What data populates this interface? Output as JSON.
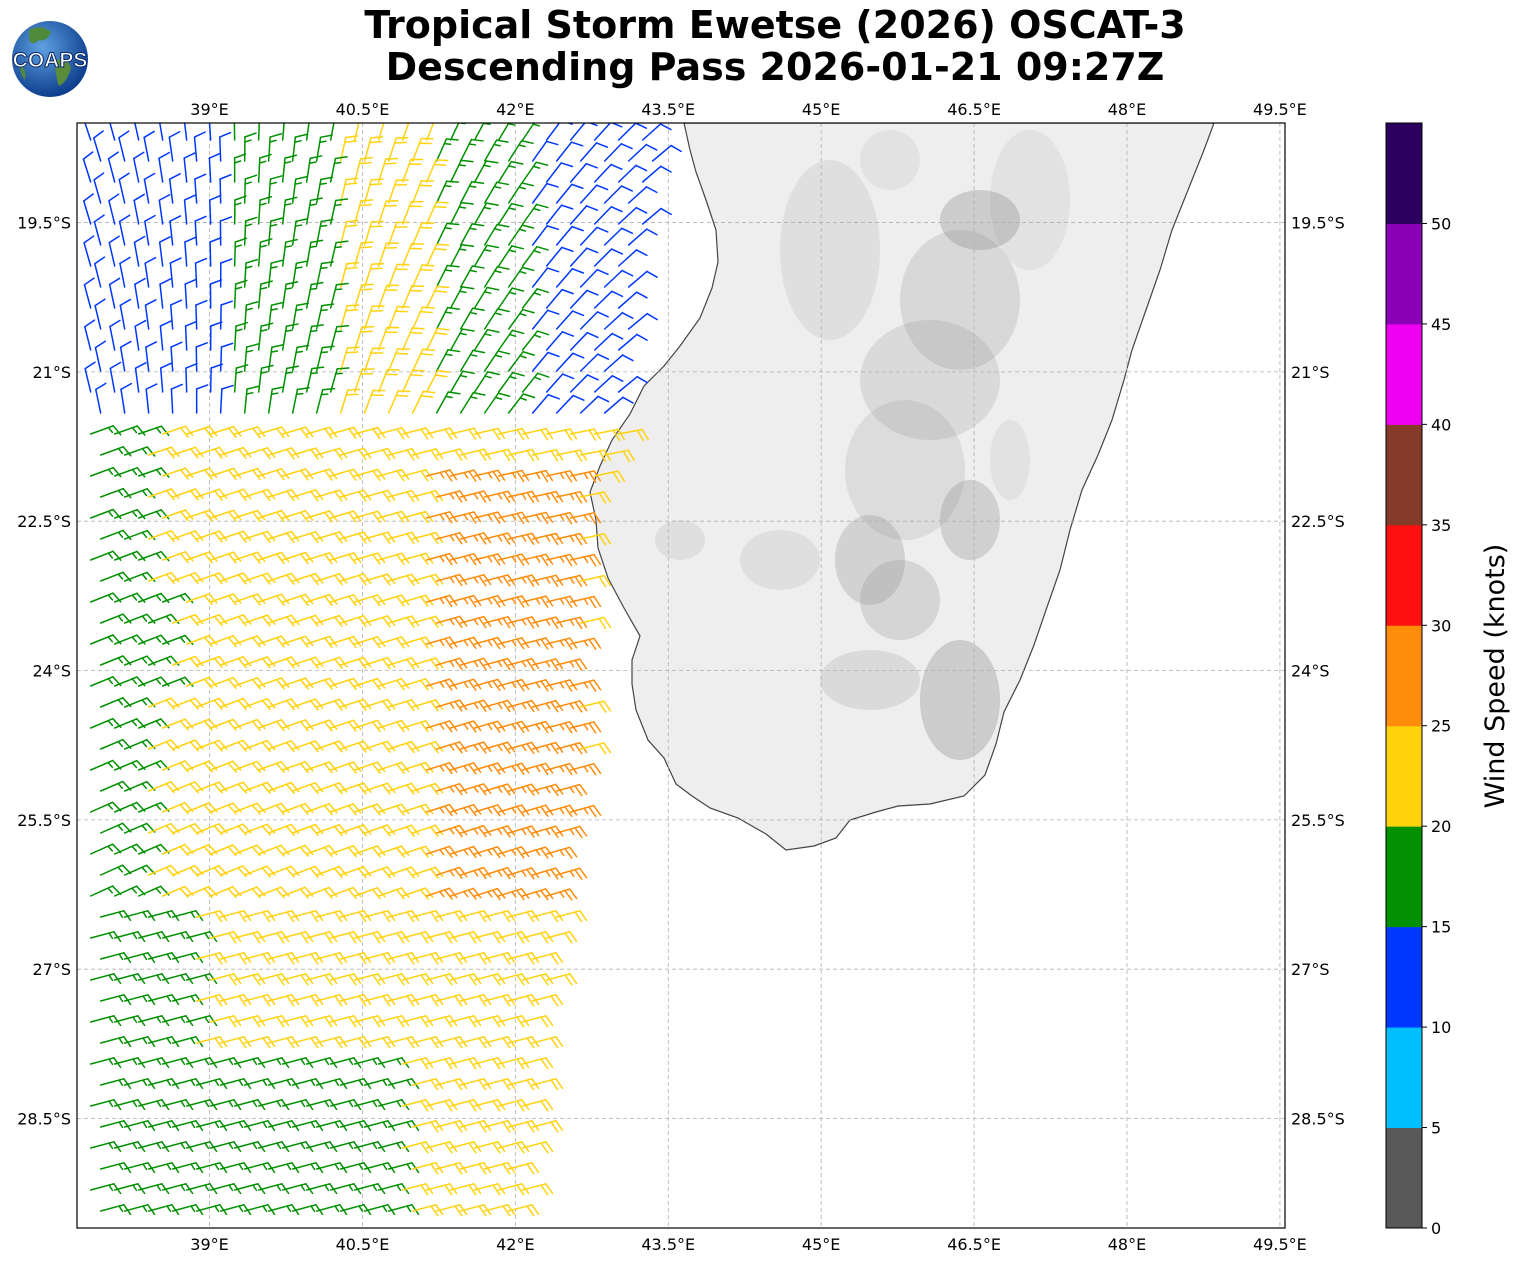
{
  "header": {
    "line1": "Tropical Storm Ewetse (2026) OSCAT-3",
    "line2": "Descending Pass 2026-01-21 09:27Z",
    "logo_text": "COAPS"
  },
  "map": {
    "lon_range": [
      37.7,
      49.55
    ],
    "lat_range": [
      -29.6,
      -18.5
    ],
    "lon_ticks": [
      "39°E",
      "40.5°E",
      "42°E",
      "43.5°E",
      "45°E",
      "46.5°E",
      "48°E",
      "49.5°E"
    ],
    "lat_ticks": [
      "19.5°S",
      "21°S",
      "22.5°S",
      "24°S",
      "25.5°S",
      "27°S",
      "28.5°S"
    ],
    "land_color": "#efefef",
    "coast_color": "#333333"
  },
  "colorbar": {
    "label": "Wind Speed (knots)",
    "ticks": [
      "0",
      "5",
      "10",
      "15",
      "20",
      "25",
      "30",
      "35",
      "40",
      "45",
      "50"
    ],
    "colors": [
      "#595959",
      "#00bfff",
      "#0037ff",
      "#009000",
      "#ffd20e",
      "#ff8c0a",
      "#ff1010",
      "#853b2a",
      "#f000f0",
      "#8a00b8",
      "#2c005e"
    ]
  },
  "wind_field": {
    "units": "knots",
    "instrument": "OSCAT-3"
  }
}
